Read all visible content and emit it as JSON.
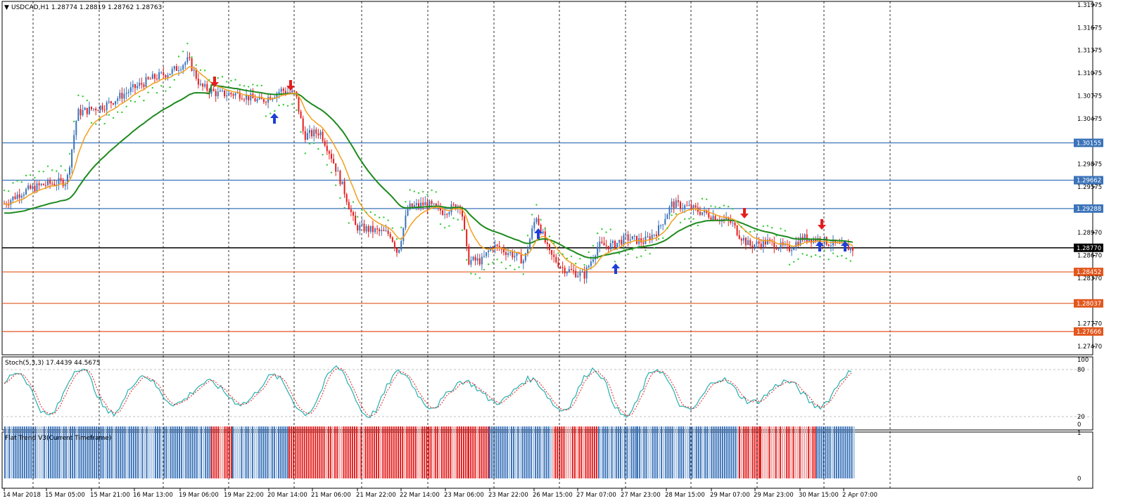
{
  "header": {
    "symbol_info": "USDCAD,H1  1.28774 1.28819 1.28762 1.28763",
    "menu_arrow": "▼"
  },
  "main_pane": {
    "price_ticks": [
      "1.31975",
      "1.31675",
      "1.31375",
      "1.31075",
      "1.30775",
      "1.30475",
      "1.29875",
      "1.29575",
      "1.28970",
      "1.28670",
      "1.28370",
      "1.27770",
      "1.27470"
    ],
    "levels": [
      {
        "label": "1.30155",
        "color": "#3b73b9"
      },
      {
        "label": "1.29662",
        "color": "#3b73b9"
      },
      {
        "label": "1.29288",
        "color": "#3b73b9"
      },
      {
        "label": "1.28770",
        "color": "#000000"
      },
      {
        "label": "1.28452",
        "color": "#e2571e"
      },
      {
        "label": "1.28037",
        "color": "#e2571e"
      },
      {
        "label": "1.27666",
        "color": "#e2571e"
      }
    ]
  },
  "stoch_pane": {
    "title": "Stoch(5,3,3) 17.4439 44.5675",
    "ticks": [
      "100",
      "80",
      "20",
      "0"
    ]
  },
  "flat_pane": {
    "title": "Flat Trend V3(Current Timeframe)",
    "ticks": [
      "1",
      "0"
    ]
  },
  "time_axis": [
    "14 Mar 2018",
    "15 Mar 05:00",
    "15 Mar 21:00",
    "16 Mar 13:00",
    "19 Mar 06:00",
    "19 Mar 22:00",
    "20 Mar 14:00",
    "21 Mar 06:00",
    "21 Mar 22:00",
    "22 Mar 14:00",
    "23 Mar 06:00",
    "23 Mar 22:00",
    "26 Mar 15:00",
    "27 Mar 07:00",
    "27 Mar 23:00",
    "28 Mar 15:00",
    "29 Mar 07:00",
    "29 Mar 23:00",
    "30 Mar 15:00",
    "2 Apr 07:00"
  ],
  "colors": {
    "bull": "#3b73b9",
    "bear": "#e41e1e",
    "fast_ma": "#f2a01e",
    "slow_ma": "#1e8a1e",
    "psar": "#33cc33",
    "stoch_main": "#26b0b0",
    "stoch_signal": "#e41e1e"
  }
}
